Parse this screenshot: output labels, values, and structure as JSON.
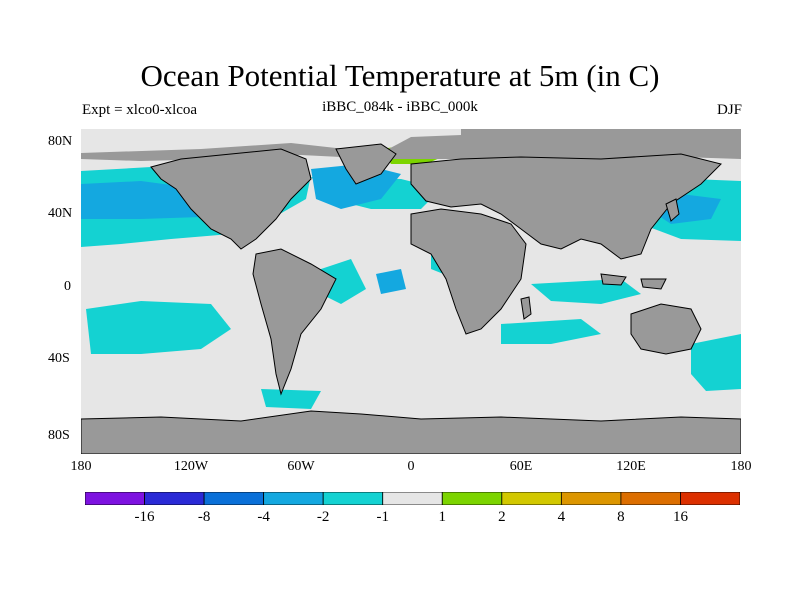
{
  "title": "Ocean Potential Temperature at 5m (in C)",
  "expt": "Expt = xlco0-xlcoa",
  "subtitle": "iBBC_084k - iBBC_000k",
  "season": "DJF",
  "lat_labels": [
    "80N",
    "40N",
    "0",
    "40S",
    "80S"
  ],
  "lon_labels": [
    "180",
    "120W",
    "60W",
    "0",
    "60E",
    "120E",
    "180"
  ],
  "colorbar": {
    "labels": [
      "-16",
      "-8",
      "-4",
      "-2",
      "-1",
      "1",
      "2",
      "4",
      "8",
      "16"
    ],
    "colors": [
      "#7d12e0",
      "#2a2ad6",
      "#0a70d8",
      "#14a8e0",
      "#14d2d2",
      "#e6e6e6",
      "#7cd400",
      "#d2c800",
      "#dc9600",
      "#dc6e00",
      "#dc3000"
    ]
  },
  "colors": {
    "land": "#999999",
    "ocean": "#e6e6e6",
    "coastline": "#000000"
  }
}
